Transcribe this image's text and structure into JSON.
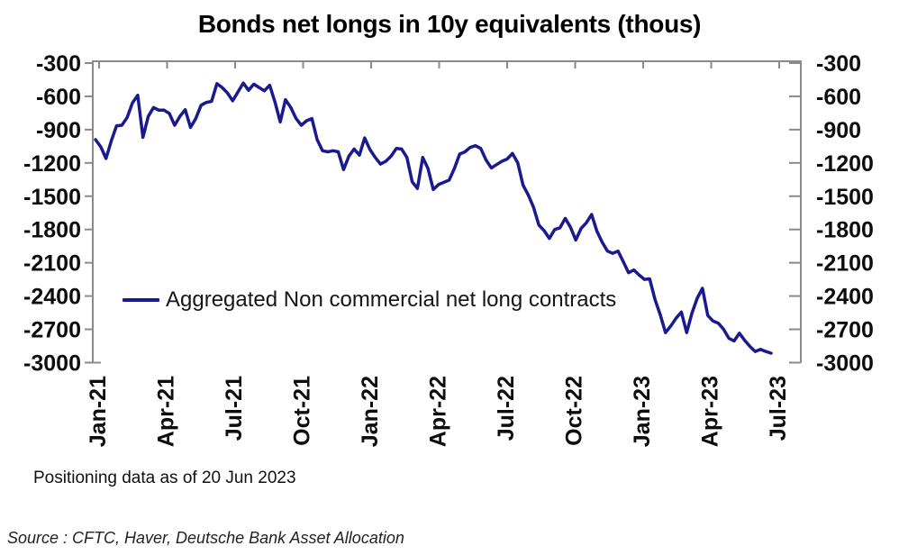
{
  "chart_data": {
    "type": "line",
    "title": "Bonds net longs in 10y equivalents (thous)",
    "legend_label": "Aggregated Non commercial net long contracts",
    "legend_position": "inside-left-middle",
    "grid": false,
    "x_ticks": [
      "Jan-21",
      "Apr-21",
      "Jul-21",
      "Oct-21",
      "Jan-22",
      "Apr-22",
      "Jul-22",
      "Oct-22",
      "Jan-23",
      "Apr-23",
      "Jul-23"
    ],
    "y_ticks": [
      "-300",
      "-600",
      "-900",
      "-1200",
      "-1500",
      "-1800",
      "-2100",
      "-2400",
      "-2700",
      "-3000"
    ],
    "ylim": [
      -3000,
      -300
    ],
    "line_color": "#1a1a8f",
    "axis_color": "#8a8a8a",
    "series": [
      {
        "name": "Aggregated Non commercial net long contracts",
        "frequency": "weekly",
        "start": "Jan-21",
        "end": "20 Jun 2023",
        "values": [
          -990,
          -1055,
          -1160,
          -1000,
          -865,
          -860,
          -790,
          -660,
          -590,
          -970,
          -780,
          -700,
          -725,
          -725,
          -755,
          -860,
          -780,
          -720,
          -880,
          -800,
          -680,
          -655,
          -645,
          -485,
          -520,
          -570,
          -640,
          -560,
          -480,
          -545,
          -490,
          -520,
          -550,
          -500,
          -650,
          -830,
          -630,
          -700,
          -800,
          -860,
          -820,
          -800,
          -990,
          -1090,
          -1100,
          -1090,
          -1100,
          -1260,
          -1140,
          -1075,
          -1130,
          -975,
          -1080,
          -1150,
          -1210,
          -1185,
          -1140,
          -1070,
          -1075,
          -1150,
          -1370,
          -1430,
          -1150,
          -1250,
          -1440,
          -1395,
          -1375,
          -1355,
          -1250,
          -1120,
          -1100,
          -1060,
          -1045,
          -1070,
          -1175,
          -1245,
          -1215,
          -1185,
          -1165,
          -1115,
          -1200,
          -1400,
          -1490,
          -1600,
          -1760,
          -1810,
          -1880,
          -1800,
          -1785,
          -1700,
          -1780,
          -1895,
          -1790,
          -1740,
          -1665,
          -1815,
          -1915,
          -1995,
          -2015,
          -1995,
          -2090,
          -2190,
          -2165,
          -2210,
          -2250,
          -2245,
          -2430,
          -2570,
          -2730,
          -2670,
          -2600,
          -2545,
          -2730,
          -2555,
          -2420,
          -2330,
          -2575,
          -2625,
          -2645,
          -2700,
          -2780,
          -2805,
          -2735,
          -2800,
          -2855,
          -2900,
          -2880,
          -2900,
          -2915
        ]
      }
    ]
  },
  "footnote": "Positioning data as of 20 Jun 2023",
  "source": "Source : CFTC, Haver, Deutsche Bank Asset Allocation"
}
